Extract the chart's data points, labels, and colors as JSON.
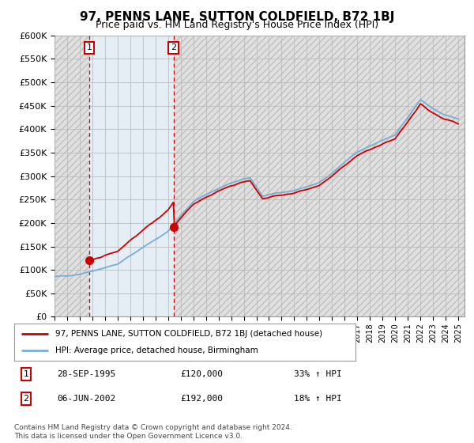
{
  "title": "97, PENNS LANE, SUTTON COLDFIELD, B72 1BJ",
  "subtitle": "Price paid vs. HM Land Registry's House Price Index (HPI)",
  "ylim": [
    0,
    600000
  ],
  "xlim_start": 1993.0,
  "xlim_end": 2025.5,
  "sale1_x": 1995.747,
  "sale1_y": 120000,
  "sale1_label": "1",
  "sale1_date": "28-SEP-1995",
  "sale1_price": "£120,000",
  "sale1_hpi": "33% ↑ HPI",
  "sale2_x": 2002.44,
  "sale2_y": 192000,
  "sale2_label": "2",
  "sale2_date": "06-JUN-2002",
  "sale2_price": "£192,000",
  "sale2_hpi": "18% ↑ HPI",
  "legend_line1": "97, PENNS LANE, SUTTON COLDFIELD, B72 1BJ (detached house)",
  "legend_line2": "HPI: Average price, detached house, Birmingham",
  "footer": "Contains HM Land Registry data © Crown copyright and database right 2024.\nThis data is licensed under the Open Government Licence v3.0.",
  "red_color": "#cc0000",
  "blue_color": "#7aadd4",
  "hatch_bg": "#e0e0e0",
  "mid_bg": "#dce8f2",
  "plot_bg": "#ffffff",
  "grid_color": "#bbbbbb",
  "title_fontsize": 11,
  "subtitle_fontsize": 9
}
